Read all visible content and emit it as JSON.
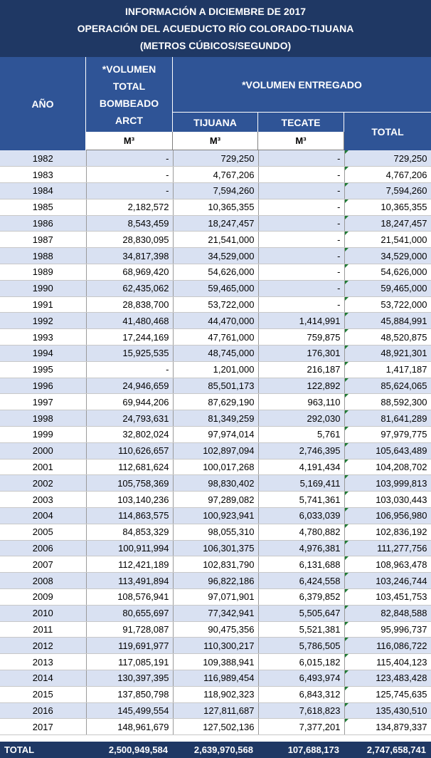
{
  "title": {
    "line1": "INFORMACIÓN A DICIEMBRE DE 2017",
    "line2": "OPERACIÓN DEL ACUEDUCTO RÍO COLORADO-TIJUANA",
    "line3": "(METROS CÚBICOS/SEGUNDO)"
  },
  "headers": {
    "year": "AÑO",
    "pumped": [
      "*VOLUMEN",
      "TOTAL",
      "BOMBEADO",
      "ARCT"
    ],
    "delivered": "*VOLUMEN ENTREGADO",
    "tijuana": "TIJUANA",
    "tecate": "TECATE",
    "total": "TOTAL",
    "unit_pumped": "M³",
    "unit_tijuana": "M³",
    "unit_tecate": "M³"
  },
  "rows": [
    {
      "year": "1982",
      "pumped": "-",
      "tijuana": "729,250",
      "tecate": "-",
      "total": "729,250"
    },
    {
      "year": "1983",
      "pumped": "-",
      "tijuana": "4,767,206",
      "tecate": "-",
      "total": "4,767,206"
    },
    {
      "year": "1984",
      "pumped": "-",
      "tijuana": "7,594,260",
      "tecate": "-",
      "total": "7,594,260"
    },
    {
      "year": "1985",
      "pumped": "2,182,572",
      "tijuana": "10,365,355",
      "tecate": "-",
      "total": "10,365,355"
    },
    {
      "year": "1986",
      "pumped": "8,543,459",
      "tijuana": "18,247,457",
      "tecate": "-",
      "total": "18,247,457"
    },
    {
      "year": "1987",
      "pumped": "28,830,095",
      "tijuana": "21,541,000",
      "tecate": "-",
      "total": "21,541,000"
    },
    {
      "year": "1988",
      "pumped": "34,817,398",
      "tijuana": "34,529,000",
      "tecate": "-",
      "total": "34,529,000"
    },
    {
      "year": "1989",
      "pumped": "68,969,420",
      "tijuana": "54,626,000",
      "tecate": "-",
      "total": "54,626,000"
    },
    {
      "year": "1990",
      "pumped": "62,435,062",
      "tijuana": "59,465,000",
      "tecate": "-",
      "total": "59,465,000"
    },
    {
      "year": "1991",
      "pumped": "28,838,700",
      "tijuana": "53,722,000",
      "tecate": "-",
      "total": "53,722,000"
    },
    {
      "year": "1992",
      "pumped": "41,480,468",
      "tijuana": "44,470,000",
      "tecate": "1,414,991",
      "total": "45,884,991"
    },
    {
      "year": "1993",
      "pumped": "17,244,169",
      "tijuana": "47,761,000",
      "tecate": "759,875",
      "total": "48,520,875"
    },
    {
      "year": "1994",
      "pumped": "15,925,535",
      "tijuana": "48,745,000",
      "tecate": "176,301",
      "total": "48,921,301"
    },
    {
      "year": "1995",
      "pumped": "-",
      "tijuana": "1,201,000",
      "tecate": "216,187",
      "total": "1,417,187"
    },
    {
      "year": "1996",
      "pumped": "24,946,659",
      "tijuana": "85,501,173",
      "tecate": "122,892",
      "total": "85,624,065"
    },
    {
      "year": "1997",
      "pumped": "69,944,206",
      "tijuana": "87,629,190",
      "tecate": "963,110",
      "total": "88,592,300"
    },
    {
      "year": "1998",
      "pumped": "24,793,631",
      "tijuana": "81,349,259",
      "tecate": "292,030",
      "total": "81,641,289"
    },
    {
      "year": "1999",
      "pumped": "32,802,024",
      "tijuana": "97,974,014",
      "tecate": "5,761",
      "total": "97,979,775"
    },
    {
      "year": "2000",
      "pumped": "110,626,657",
      "tijuana": "102,897,094",
      "tecate": "2,746,395",
      "total": "105,643,489"
    },
    {
      "year": "2001",
      "pumped": "112,681,624",
      "tijuana": "100,017,268",
      "tecate": "4,191,434",
      "total": "104,208,702"
    },
    {
      "year": "2002",
      "pumped": "105,758,369",
      "tijuana": "98,830,402",
      "tecate": "5,169,411",
      "total": "103,999,813"
    },
    {
      "year": "2003",
      "pumped": "103,140,236",
      "tijuana": "97,289,082",
      "tecate": "5,741,361",
      "total": "103,030,443"
    },
    {
      "year": "2004",
      "pumped": "114,863,575",
      "tijuana": "100,923,941",
      "tecate": "6,033,039",
      "total": "106,956,980"
    },
    {
      "year": "2005",
      "pumped": "84,853,329",
      "tijuana": "98,055,310",
      "tecate": "4,780,882",
      "total": "102,836,192"
    },
    {
      "year": "2006",
      "pumped": "100,911,994",
      "tijuana": "106,301,375",
      "tecate": "4,976,381",
      "total": "111,277,756"
    },
    {
      "year": "2007",
      "pumped": "112,421,189",
      "tijuana": "102,831,790",
      "tecate": "6,131,688",
      "total": "108,963,478"
    },
    {
      "year": "2008",
      "pumped": "113,491,894",
      "tijuana": "96,822,186",
      "tecate": "6,424,558",
      "total": "103,246,744"
    },
    {
      "year": "2009",
      "pumped": "108,576,941",
      "tijuana": "97,071,901",
      "tecate": "6,379,852",
      "total": "103,451,753"
    },
    {
      "year": "2010",
      "pumped": "80,655,697",
      "tijuana": "77,342,941",
      "tecate": "5,505,647",
      "total": "82,848,588"
    },
    {
      "year": "2011",
      "pumped": "91,728,087",
      "tijuana": "90,475,356",
      "tecate": "5,521,381",
      "total": "95,996,737"
    },
    {
      "year": "2012",
      "pumped": "119,691,977",
      "tijuana": "110,300,217",
      "tecate": "5,786,505",
      "total": "116,086,722"
    },
    {
      "year": "2013",
      "pumped": "117,085,191",
      "tijuana": "109,388,941",
      "tecate": "6,015,182",
      "total": "115,404,123"
    },
    {
      "year": "2014",
      "pumped": "130,397,395",
      "tijuana": "116,989,454",
      "tecate": "6,493,974",
      "total": "123,483,428"
    },
    {
      "year": "2015",
      "pumped": "137,850,798",
      "tijuana": "118,902,323",
      "tecate": "6,843,312",
      "total": "125,745,635"
    },
    {
      "year": "2016",
      "pumped": "145,499,554",
      "tijuana": "127,811,687",
      "tecate": "7,618,823",
      "total": "135,430,510"
    },
    {
      "year": "2017",
      "pumped": "148,961,679",
      "tijuana": "127,502,136",
      "tecate": "7,377,201",
      "total": "134,879,337"
    }
  ],
  "totals": {
    "label": "TOTAL",
    "pumped": "2,500,949,584",
    "tijuana": "2,639,970,568",
    "tecate": "107,688,173",
    "total": "2,747,658,741"
  },
  "colors": {
    "title_bg": "#1F3864",
    "header_bg": "#2F5496",
    "band_row": "#D9E1F2",
    "note_marker": "#1E7B34"
  }
}
